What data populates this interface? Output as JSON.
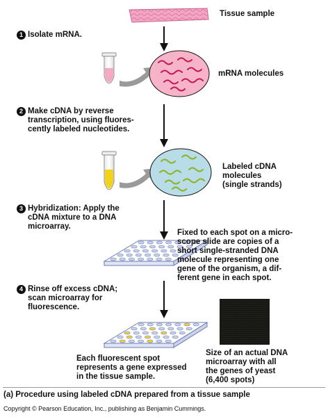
{
  "labels": {
    "tissue_sample": "Tissue sample",
    "mrna_molecules": "mRNA molecules",
    "labeled_cdna": [
      "Labeled cDNA",
      "molecules",
      "(single strands)"
    ],
    "fixed_spot_note": [
      "Fixed to each spot on a micro-",
      "scope slide are copies of a",
      "short single-stranded DNA",
      "molecule representing one",
      "gene of the organism, a dif-",
      "ferent gene in each spot."
    ],
    "fluorescent_note": [
      "Each fluorescent spot",
      "represents a gene expressed",
      "in the tissue sample."
    ],
    "actual_array_note": [
      "Size of an actual DNA",
      "microarray with all",
      "the genes of yeast",
      "(6,400 spots)"
    ]
  },
  "steps": [
    {
      "number": "1",
      "lines": [
        "Isolate mRNA."
      ]
    },
    {
      "number": "2",
      "lines": [
        "Make cDNA by reverse",
        "transcription, using fluores-",
        "cently labeled nucleotides."
      ]
    },
    {
      "number": "3",
      "lines": [
        "Hybridization: Apply the",
        "cDNA mixture to a DNA",
        "microarray."
      ]
    },
    {
      "number": "4",
      "lines": [
        "Rinse off excess cDNA;",
        "scan microarray for",
        "fluorescence."
      ]
    }
  ],
  "caption": "(a) Procedure using labeled cDNA prepared from a tissue sample",
  "copyright": "Copyright © Pearson Education, Inc., publishing as Benjamin Cummings.",
  "colors": {
    "tissue": "#f3a6c4",
    "mrna_oval": "#f7b3c8",
    "mrna_strand": "#c2185b",
    "cdna_oval": "#b9dde8",
    "cdna_strand": "#8fb52b",
    "yellow_tube": "#f2d21b",
    "slide_spot": "#c9d3ea",
    "fluorescent_spot": "#f2d23a",
    "arrow": "#111111",
    "curved_arrow": "#9a9a9a"
  }
}
